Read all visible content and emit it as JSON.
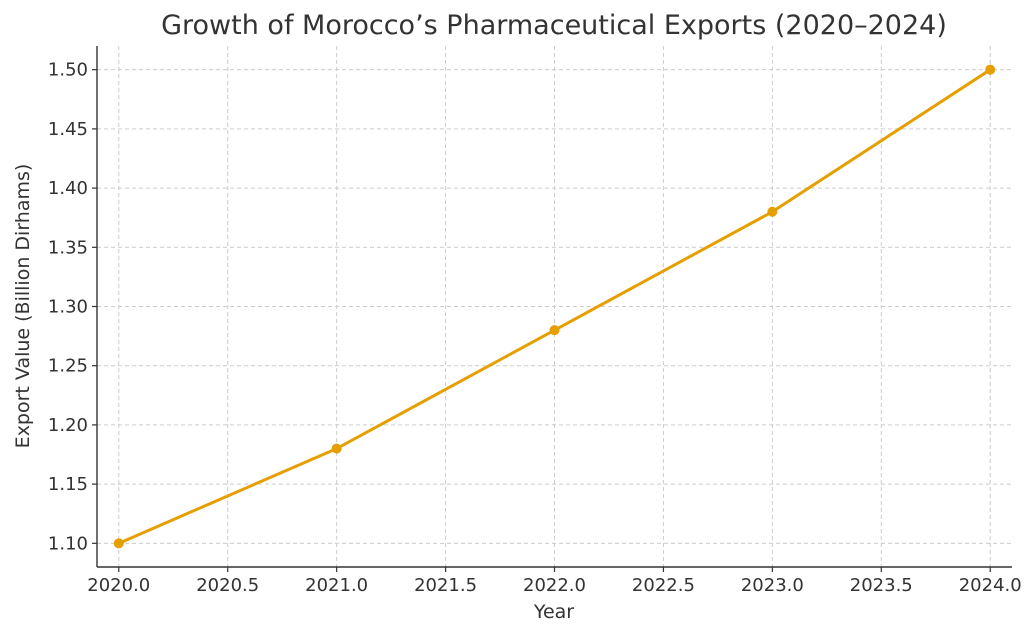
{
  "chart_data": {
    "type": "line",
    "title": "Growth of Morocco’s Pharmaceutical Exports (2020–2024)",
    "xlabel": "Year",
    "ylabel": "Export Value (Billion Dirhams)",
    "xlim": [
      2019.9,
      2024.1
    ],
    "ylim": [
      1.08,
      1.52
    ],
    "xticks": [
      2020.0,
      2020.5,
      2021.0,
      2021.5,
      2022.0,
      2022.5,
      2023.0,
      2023.5,
      2024.0
    ],
    "xtick_labels": [
      "2020.0",
      "2020.5",
      "2021.0",
      "2021.5",
      "2022.0",
      "2022.5",
      "2023.0",
      "2023.5",
      "2024.0"
    ],
    "yticks": [
      1.1,
      1.15,
      1.2,
      1.25,
      1.3,
      1.35,
      1.4,
      1.45,
      1.5
    ],
    "ytick_labels": [
      "1.10",
      "1.15",
      "1.20",
      "1.25",
      "1.30",
      "1.35",
      "1.40",
      "1.45",
      "1.50"
    ],
    "grid": true,
    "series": [
      {
        "color": "#E69F00",
        "x": [
          2020,
          2021,
          2022,
          2023,
          2024
        ],
        "y": [
          1.1,
          1.18,
          1.28,
          1.38,
          1.5
        ]
      }
    ]
  }
}
